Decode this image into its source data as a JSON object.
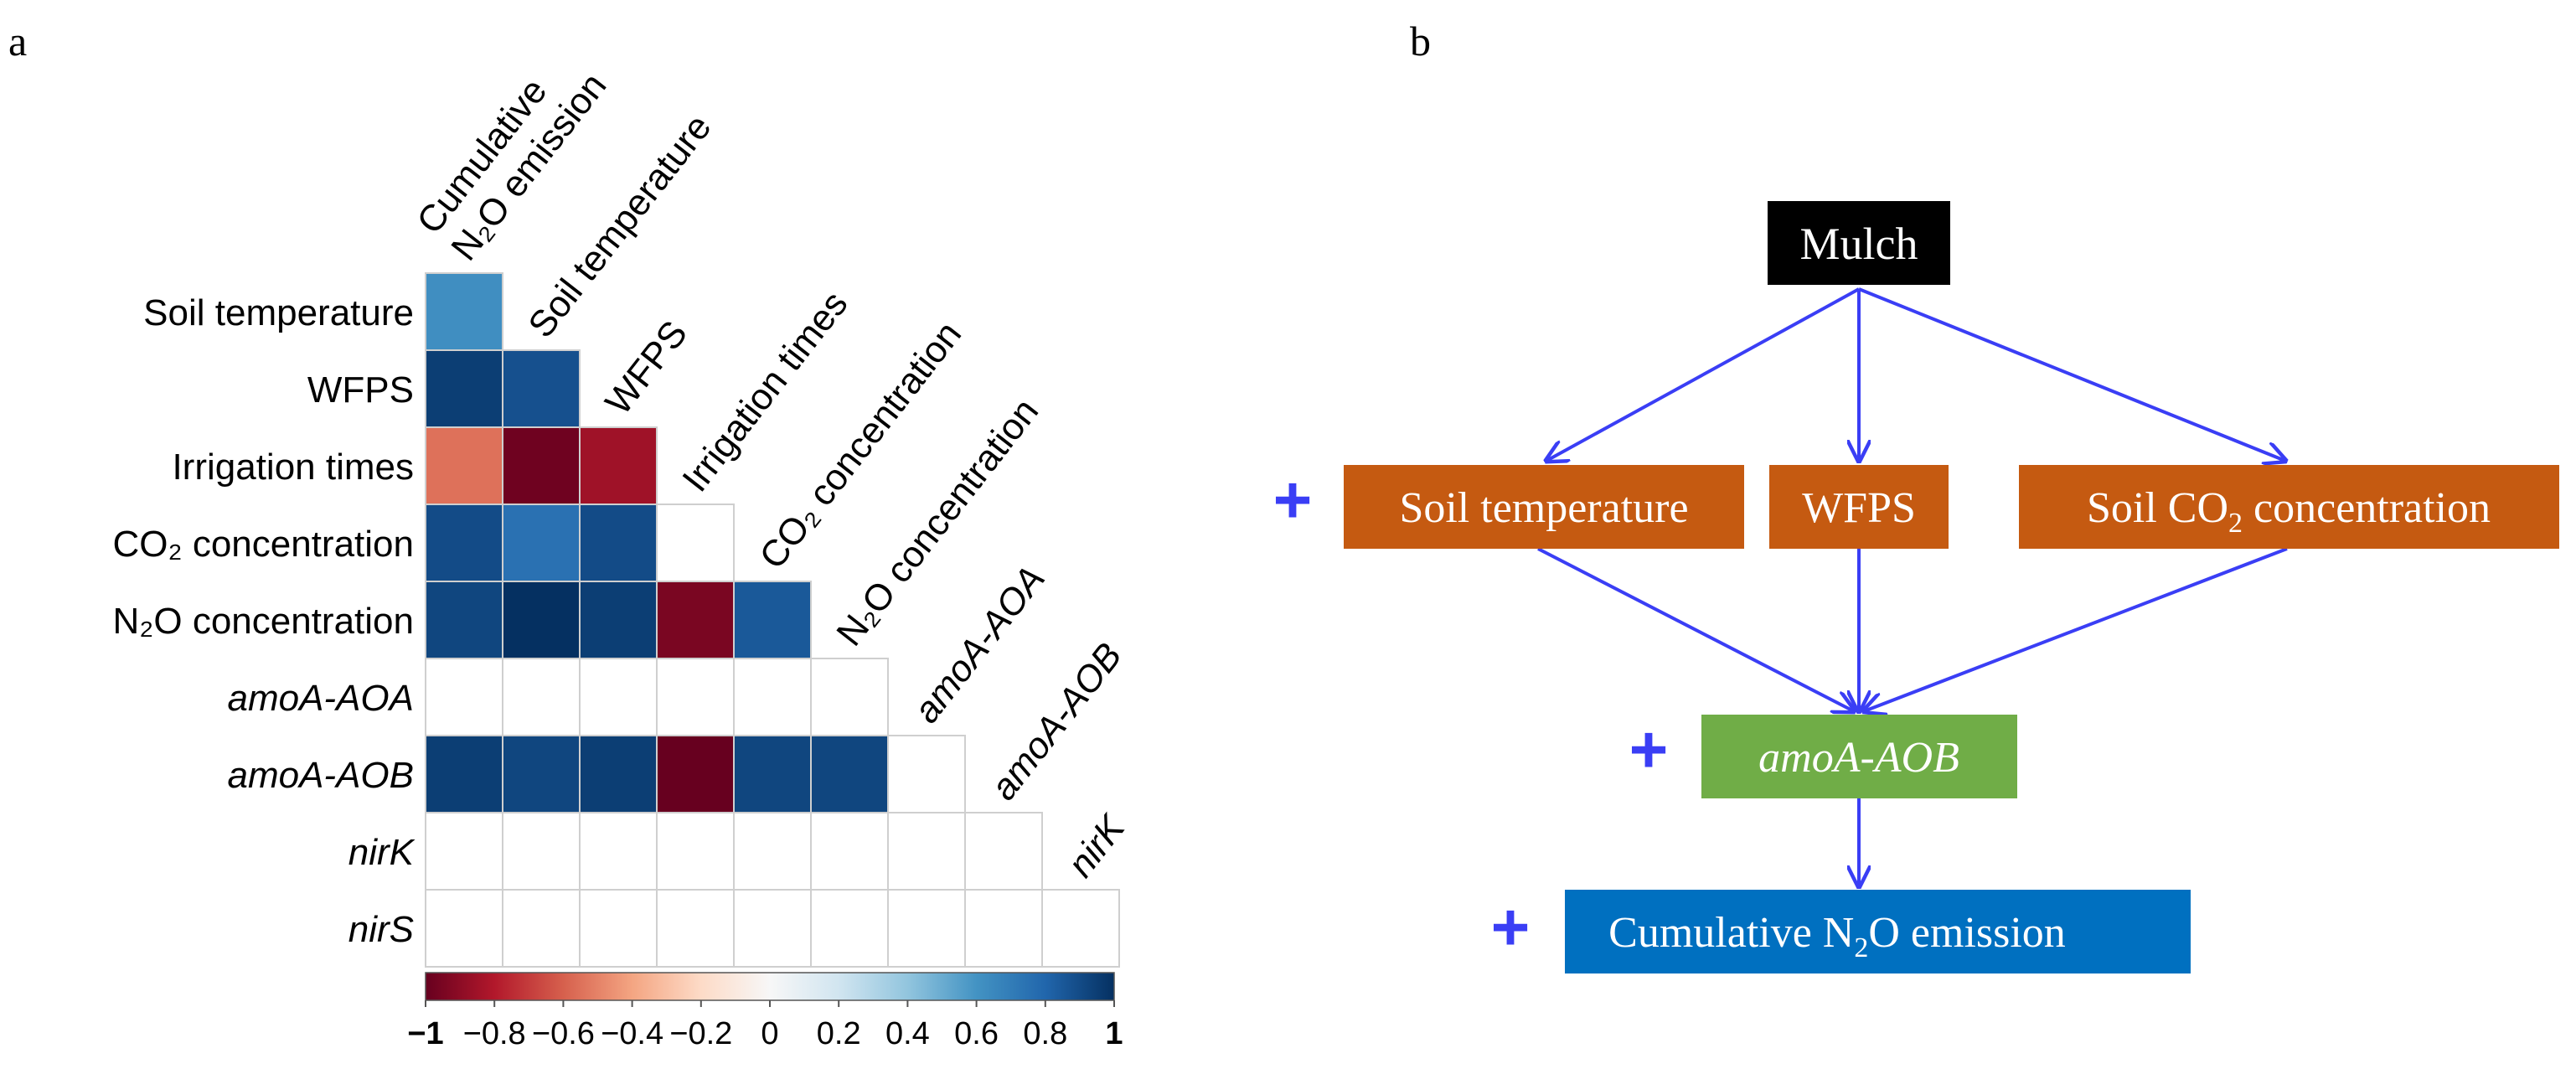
{
  "panel_a": {
    "label": "a",
    "chart_data": {
      "type": "heatmap",
      "title": "",
      "row_labels": [
        "Soil temperature",
        "WFPS",
        "Irrigation times",
        "CO₂ concentration",
        "N₂O concentration",
        "amoA-AOA",
        "amoA-AOB",
        "nirK",
        "nirS"
      ],
      "row_labels_italic": [
        false,
        false,
        false,
        false,
        false,
        true,
        true,
        true,
        true
      ],
      "column_labels": [
        {
          "lines": [
            "Cumulative",
            "N₂O emission"
          ],
          "italic": false
        },
        {
          "lines": [
            "Soil temperature"
          ],
          "italic": false
        },
        {
          "lines": [
            "WFPS"
          ],
          "italic": false
        },
        {
          "lines": [
            "Irrigation times"
          ],
          "italic": false
        },
        {
          "lines": [
            "CO₂ concentration"
          ],
          "italic": false
        },
        {
          "lines": [
            "N₂O concentration"
          ],
          "italic": false
        },
        {
          "lines": [
            "amoA-AOA"
          ],
          "italic": true
        },
        {
          "lines": [
            "amoA-AOB"
          ],
          "italic": true
        },
        {
          "lines": [
            "nirK"
          ],
          "italic": true
        }
      ],
      "values": [
        [
          0.62
        ],
        [
          0.95,
          0.88
        ],
        [
          -0.55,
          -0.98,
          -0.85
        ],
        [
          0.9,
          0.75,
          0.9,
          null
        ],
        [
          0.92,
          1.0,
          0.95,
          -0.95,
          0.85
        ],
        [
          null,
          null,
          null,
          null,
          null,
          null
        ],
        [
          0.95,
          0.92,
          0.95,
          -1.0,
          0.92,
          0.92,
          null
        ],
        [
          null,
          null,
          null,
          null,
          null,
          null,
          null,
          null
        ],
        [
          null,
          null,
          null,
          null,
          null,
          null,
          null,
          null,
          null
        ]
      ],
      "colorbar": {
        "range": [
          -1,
          1
        ],
        "ticks": [
          "−1",
          "−0.8",
          "−0.6",
          "−0.4",
          "−0.2",
          "0",
          "0.2",
          "0.4",
          "0.6",
          "0.8",
          "1"
        ],
        "colors": [
          "#67001f",
          "#b2182b",
          "#d6604d",
          "#f4a582",
          "#fddbc7",
          "#f7f7f7",
          "#d1e5f0",
          "#92c5de",
          "#4393c3",
          "#2166ac",
          "#053061"
        ]
      }
    }
  },
  "panel_b": {
    "label": "b",
    "nodes": {
      "mulch": "Mulch",
      "soil_temperature": "Soil temperature",
      "wfps": "WFPS",
      "soil_co2": "Soil CO",
      "soil_co2_sub": "2",
      "soil_co2_tail": " concentration",
      "amoa_aob": "amoA-AOB",
      "cum_n2o_head": "Cumulative N",
      "cum_n2o_sub": "2",
      "cum_n2o_tail": "O emission"
    },
    "signs": {
      "factors": "+",
      "amoa": "+",
      "emission": "+"
    },
    "colors": {
      "mulch": "#000000",
      "factor": "#c55a11",
      "amoa": "#70ad47",
      "emission": "#0070c0",
      "arrow": "#3a3ef5",
      "sign": "#3a3ef5"
    }
  }
}
